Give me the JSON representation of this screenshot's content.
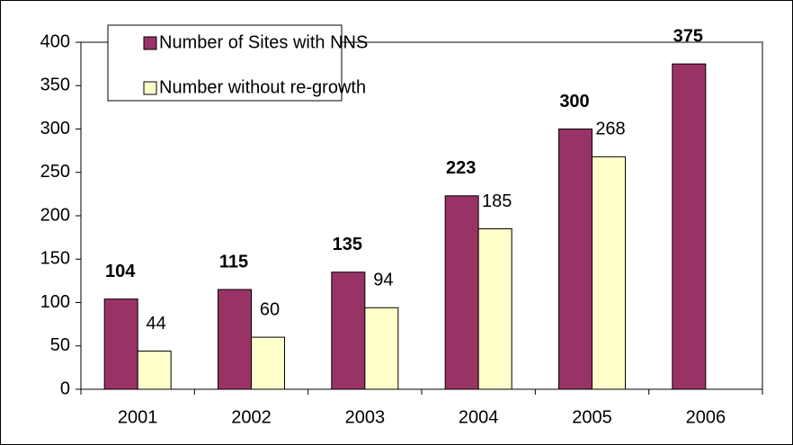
{
  "chart_data": {
    "type": "bar",
    "categories": [
      "2001",
      "2002",
      "2003",
      "2004",
      "2005",
      "2006"
    ],
    "series": [
      {
        "name": "Number of Sites with NNS",
        "color": "#993366",
        "values": [
          104,
          115,
          135,
          223,
          300,
          375
        ]
      },
      {
        "name": "Number without re-growth",
        "color": "#ffffcc",
        "values": [
          44,
          60,
          94,
          185,
          268,
          null
        ]
      }
    ],
    "ylim": [
      0,
      400
    ],
    "yticks": [
      0,
      50,
      100,
      150,
      200,
      250,
      300,
      350,
      400
    ],
    "legend": "top-left",
    "grid": false
  }
}
